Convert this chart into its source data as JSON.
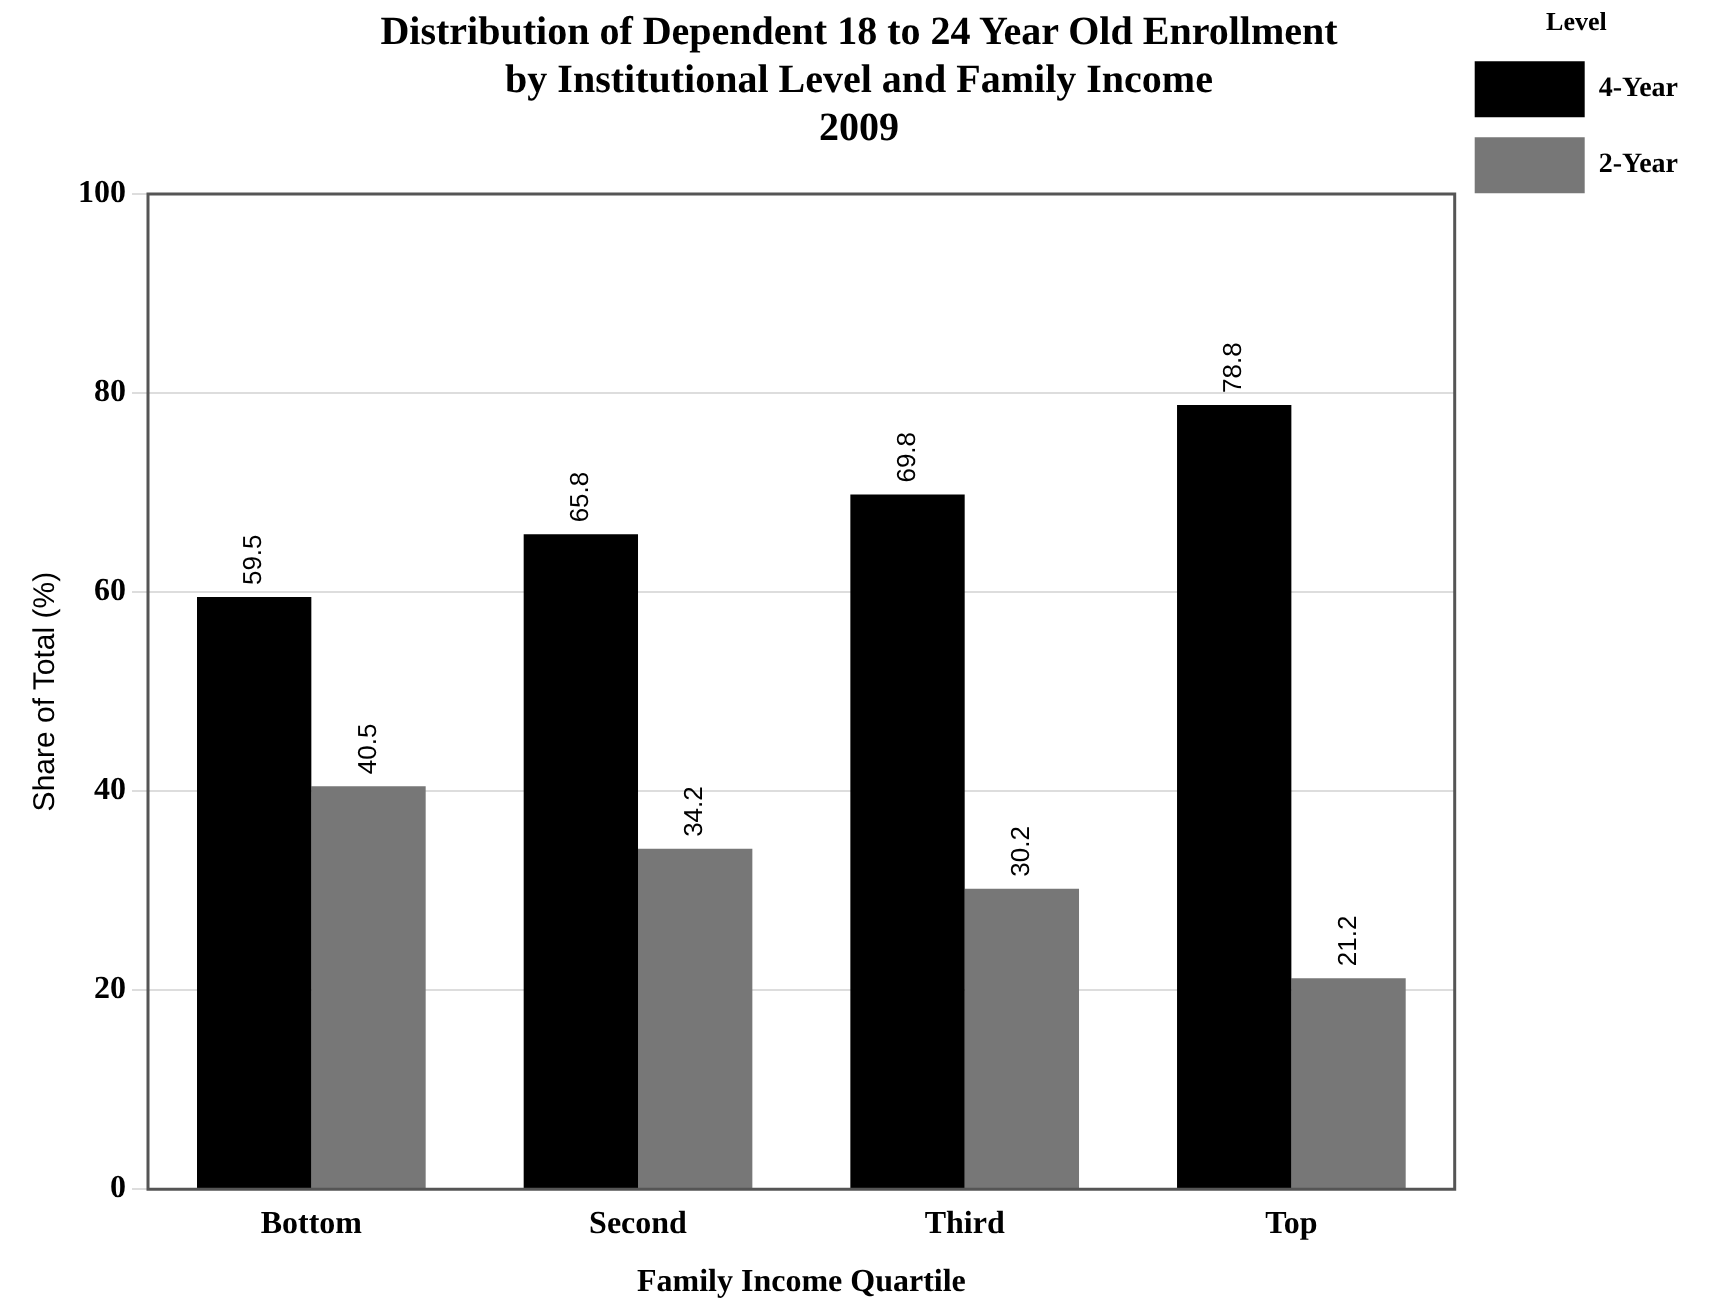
{
  "chart_data": {
    "type": "bar",
    "title": "Distribution of Dependent 18 to 24 Year Old Enrollment\nby Institutional Level and Family Income\n2009",
    "xlabel": "Family Income Quartile",
    "ylabel": "Share of Total (%)",
    "legend_title": "Level",
    "categories": [
      "Bottom",
      "Second",
      "Third",
      "Top"
    ],
    "series": [
      {
        "name": "4-Year",
        "color": "#000000",
        "values": [
          59.5,
          65.8,
          69.8,
          78.8
        ]
      },
      {
        "name": "2-Year",
        "color": "#777777",
        "values": [
          40.5,
          34.2,
          30.2,
          21.2
        ]
      }
    ],
    "ylim": [
      0,
      100
    ],
    "yticks": [
      0,
      20,
      40,
      60,
      80,
      100
    ],
    "grid": "y",
    "legend": "top right",
    "data_labels": true
  }
}
